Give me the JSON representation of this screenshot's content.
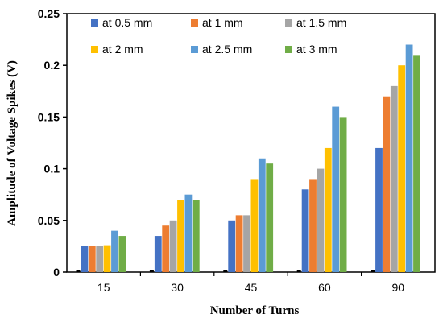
{
  "chart_data": {
    "type": "bar",
    "title": "",
    "xlabel": "Number of Turns",
    "ylabel": "Amplitude of Voltage Spikes (V)",
    "categories": [
      "15",
      "30",
      "45",
      "60",
      "90"
    ],
    "ylim": [
      0,
      0.25
    ],
    "yticks": [
      0,
      0.05,
      0.1,
      0.15,
      0.2,
      0.25
    ],
    "ytick_labels": [
      "0",
      "0.05",
      "0.1",
      "0.15",
      "0.2",
      "0.25"
    ],
    "grid": false,
    "legend_position": "top",
    "series": [
      {
        "name": "at 0.5 mm",
        "color": "#4472C4",
        "values": [
          0.025,
          0.035,
          0.05,
          0.08,
          0.12
        ]
      },
      {
        "name": "at 1 mm",
        "color": "#ED7D31",
        "values": [
          0.025,
          0.045,
          0.055,
          0.09,
          0.17
        ]
      },
      {
        "name": "at 1.5 mm",
        "color": "#A5A5A5",
        "values": [
          0.025,
          0.05,
          0.055,
          0.1,
          0.18
        ]
      },
      {
        "name": "at 2 mm",
        "color": "#FFC000",
        "values": [
          0.026,
          0.07,
          0.09,
          0.12,
          0.2
        ]
      },
      {
        "name": "at 2.5 mm",
        "color": "#5B9BD5",
        "values": [
          0.04,
          0.075,
          0.11,
          0.16,
          0.22
        ]
      },
      {
        "name": "at 3 mm",
        "color": "#70AD47",
        "values": [
          0.035,
          0.07,
          0.105,
          0.15,
          0.21
        ]
      }
    ]
  }
}
